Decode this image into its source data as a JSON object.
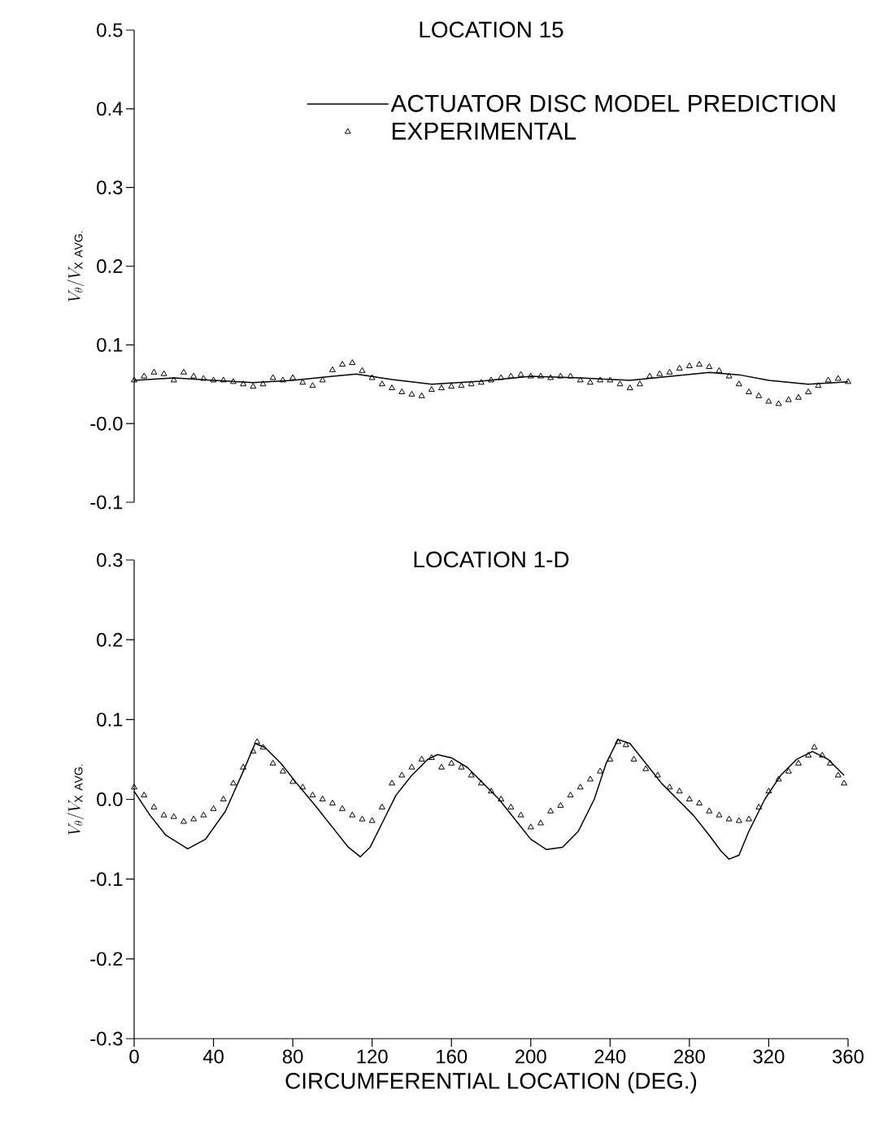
{
  "chart_data": [
    {
      "type": "line",
      "title": "LOCATION 15",
      "ylabel": "V_{\\theta} / V_{\\mathrm{X\\ AVG.}}",
      "xlim": [
        0,
        360
      ],
      "xticks": [
        0,
        40,
        80,
        120,
        160,
        200,
        240,
        280,
        320,
        360
      ],
      "ylim": [
        -0.1,
        0.5
      ],
      "yticks": [
        -0.1,
        {
          "value": 0,
          "label": "-0.0"
        },
        0.1,
        0.2,
        0.3,
        0.4,
        0.5
      ],
      "tick_labels": "y",
      "legend": "top right",
      "grid": false,
      "series": [
        {
          "name": "ACTUATOR DISC MODEL PREDICTION",
          "color": "#000000",
          "marker": "none",
          "line_style": "solid",
          "x": [
            0,
            20,
            40,
            60,
            80,
            100,
            112,
            130,
            150,
            175,
            200,
            225,
            250,
            270,
            290,
            305,
            320,
            340,
            360
          ],
          "values": [
            0.055,
            0.058,
            0.055,
            0.052,
            0.055,
            0.06,
            0.063,
            0.056,
            0.05,
            0.054,
            0.06,
            0.058,
            0.055,
            0.06,
            0.065,
            0.062,
            0.055,
            0.05,
            0.053
          ]
        },
        {
          "name": "EXPERIMENTAL",
          "type": "scatter",
          "color": "#000000",
          "marker": "triangle",
          "x": [
            0,
            5,
            10,
            15,
            20,
            25,
            30,
            35,
            40,
            45,
            50,
            55,
            60,
            65,
            70,
            75,
            80,
            85,
            90,
            95,
            100,
            105,
            110,
            115,
            120,
            125,
            130,
            135,
            140,
            145,
            150,
            155,
            160,
            165,
            170,
            175,
            180,
            185,
            190,
            195,
            200,
            205,
            210,
            215,
            220,
            225,
            230,
            235,
            240,
            245,
            250,
            255,
            260,
            265,
            270,
            275,
            280,
            285,
            290,
            295,
            300,
            305,
            310,
            315,
            320,
            325,
            330,
            335,
            340,
            345,
            350,
            355,
            360
          ],
          "values": [
            0.055,
            0.06,
            0.065,
            0.063,
            0.055,
            0.065,
            0.06,
            0.057,
            0.055,
            0.055,
            0.053,
            0.05,
            0.047,
            0.05,
            0.058,
            0.055,
            0.058,
            0.052,
            0.048,
            0.055,
            0.068,
            0.075,
            0.077,
            0.067,
            0.058,
            0.05,
            0.045,
            0.04,
            0.037,
            0.035,
            0.043,
            0.045,
            0.047,
            0.048,
            0.05,
            0.052,
            0.055,
            0.058,
            0.06,
            0.062,
            0.06,
            0.06,
            0.058,
            0.06,
            0.06,
            0.055,
            0.052,
            0.055,
            0.055,
            0.05,
            0.045,
            0.05,
            0.06,
            0.063,
            0.065,
            0.07,
            0.073,
            0.075,
            0.072,
            0.067,
            0.06,
            0.05,
            0.04,
            0.035,
            0.028,
            0.025,
            0.03,
            0.033,
            0.04,
            0.048,
            0.055,
            0.057,
            0.053
          ]
        }
      ]
    },
    {
      "type": "line",
      "title": "LOCATION 1-D",
      "xlabel": "CIRCUMFERENTIAL LOCATION  (DEG.)",
      "ylabel": "V_{\\theta} / V_{\\mathrm{X\\ AVG.}}",
      "xlim": [
        0,
        360
      ],
      "xticks": [
        0,
        40,
        80,
        120,
        160,
        200,
        240,
        280,
        320,
        360
      ],
      "ylim": [
        -0.3,
        0.3
      ],
      "yticks": [
        -0.3,
        -0.2,
        -0.1,
        {
          "value": 0,
          "label": "0.0"
        },
        0.1,
        0.2,
        0.3
      ],
      "legend": false,
      "grid": false,
      "series": [
        {
          "color": "#000000",
          "marker": "none",
          "line_style": "solid",
          "x": [
            0,
            8,
            16,
            27,
            36,
            46,
            55,
            61,
            66,
            74,
            82,
            92,
            100,
            108,
            114,
            119,
            125,
            132,
            140,
            148,
            153,
            160,
            168,
            176,
            184,
            192,
            200,
            208,
            216,
            224,
            232,
            238,
            244,
            250,
            258,
            266,
            274,
            282,
            290,
            296,
            300,
            305,
            310,
            318,
            326,
            334,
            342,
            350,
            358
          ],
          "values": [
            0.01,
            -0.02,
            -0.045,
            -0.062,
            -0.05,
            -0.015,
            0.035,
            0.07,
            0.065,
            0.045,
            0.02,
            -0.01,
            -0.035,
            -0.06,
            -0.072,
            -0.06,
            -0.03,
            0.005,
            0.03,
            0.05,
            0.056,
            0.052,
            0.04,
            0.02,
            0.0,
            -0.025,
            -0.05,
            -0.063,
            -0.06,
            -0.04,
            0.0,
            0.045,
            0.075,
            0.07,
            0.045,
            0.02,
            0.0,
            -0.02,
            -0.045,
            -0.065,
            -0.075,
            -0.07,
            -0.04,
            0.0,
            0.03,
            0.05,
            0.06,
            0.05,
            0.03
          ]
        },
        {
          "type": "scatter",
          "color": "#000000",
          "marker": "triangle",
          "x": [
            0,
            5,
            10,
            15,
            20,
            25,
            30,
            35,
            40,
            45,
            50,
            55,
            60,
            62,
            65,
            70,
            75,
            80,
            85,
            90,
            95,
            100,
            105,
            110,
            115,
            120,
            125,
            130,
            135,
            140,
            145,
            150,
            155,
            160,
            165,
            170,
            175,
            180,
            185,
            190,
            195,
            200,
            205,
            210,
            215,
            220,
            225,
            230,
            235,
            240,
            244,
            248,
            252,
            258,
            264,
            270,
            275,
            280,
            285,
            290,
            295,
            300,
            305,
            310,
            315,
            320,
            325,
            330,
            335,
            340,
            343,
            347,
            351,
            355,
            358
          ],
          "values": [
            0.015,
            0.005,
            -0.01,
            -0.02,
            -0.022,
            -0.028,
            -0.025,
            -0.02,
            -0.012,
            0.0,
            0.02,
            0.04,
            0.06,
            0.072,
            0.065,
            0.045,
            0.035,
            0.022,
            0.015,
            0.005,
            0.0,
            -0.005,
            -0.012,
            -0.02,
            -0.025,
            -0.027,
            -0.01,
            0.02,
            0.03,
            0.04,
            0.05,
            0.052,
            0.04,
            0.045,
            0.04,
            0.03,
            0.02,
            0.01,
            0.0,
            -0.01,
            -0.02,
            -0.035,
            -0.03,
            -0.015,
            -0.008,
            0.005,
            0.015,
            0.025,
            0.035,
            0.05,
            0.072,
            0.068,
            0.05,
            0.038,
            0.03,
            0.015,
            0.01,
            0.0,
            -0.005,
            -0.015,
            -0.02,
            -0.025,
            -0.027,
            -0.025,
            -0.01,
            0.01,
            0.025,
            0.035,
            0.045,
            0.055,
            0.065,
            0.055,
            0.045,
            0.03,
            0.02
          ]
        }
      ]
    }
  ]
}
